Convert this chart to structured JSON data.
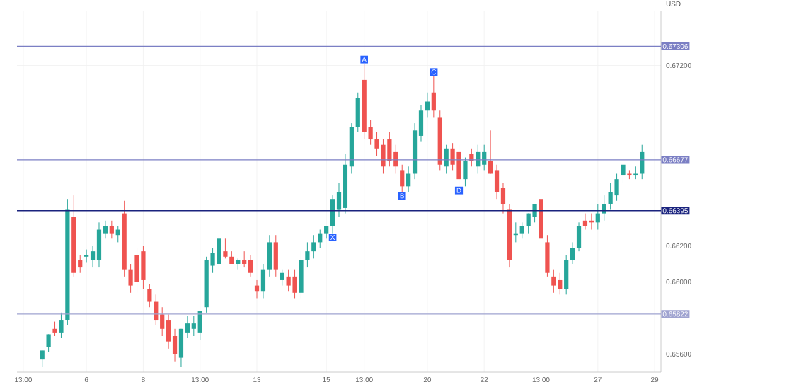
{
  "chart_data": {
    "type": "candlestick",
    "ylabel": "USD",
    "categories": [
      "13:00",
      null,
      null,
      null,
      null,
      null,
      null,
      null,
      null,
      null,
      "6",
      null,
      null,
      null,
      null,
      null,
      null,
      null,
      null,
      "8",
      null,
      null,
      null,
      null,
      null,
      null,
      null,
      null,
      "13:00",
      null,
      null,
      null,
      null,
      null,
      null,
      null,
      null,
      "13",
      null,
      null,
      null,
      null,
      null,
      null,
      null,
      null,
      null,
      null,
      "15",
      null,
      null,
      null,
      null,
      null,
      "13:00",
      null,
      null,
      null,
      null,
      null,
      null,
      null,
      null,
      null,
      "20",
      null,
      null,
      null,
      null,
      null,
      null,
      null,
      null,
      "22",
      null,
      null,
      null,
      null,
      null,
      null,
      null,
      null,
      "13:00",
      null,
      null,
      null,
      null,
      null,
      null,
      null,
      null,
      "27",
      null,
      null,
      null,
      null,
      null,
      null,
      null,
      null,
      "29"
    ],
    "ohlc": [
      null,
      null,
      null,
      [
        0.6557,
        0.6562,
        0.6553,
        0.6562
      ],
      [
        0.6564,
        0.6571,
        0.6561,
        0.6571
      ],
      [
        0.6574,
        0.6578,
        0.657,
        0.6572
      ],
      [
        0.6572,
        0.6583,
        0.6569,
        0.6579
      ],
      [
        0.6579,
        0.6646,
        0.6576,
        0.664
      ],
      [
        0.6636,
        0.6648,
        0.6603,
        0.6605
      ],
      [
        0.6612,
        0.6615,
        0.6605,
        0.6608
      ],
      [
        0.6614,
        0.6618,
        0.6611,
        0.6615
      ],
      [
        0.6612,
        0.662,
        0.6608,
        0.6617
      ],
      [
        0.6612,
        0.6633,
        0.6608,
        0.6629
      ],
      [
        0.6627,
        0.6634,
        0.6624,
        0.6631
      ],
      [
        0.6631,
        0.6634,
        0.6624,
        0.6627
      ],
      [
        0.6626,
        0.6631,
        0.6622,
        0.6629
      ],
      [
        0.6638,
        0.6645,
        0.6603,
        0.6607
      ],
      [
        0.6607,
        0.661,
        0.6594,
        0.6598
      ],
      [
        0.6615,
        0.6619,
        0.6594,
        0.66
      ],
      [
        0.6617,
        0.662,
        0.6596,
        0.6601
      ],
      [
        0.6596,
        0.6599,
        0.6586,
        0.6589
      ],
      [
        0.6589,
        0.6593,
        0.6576,
        0.6579
      ],
      [
        0.6582,
        0.6586,
        0.657,
        0.6574
      ],
      [
        0.6579,
        0.6582,
        0.6563,
        0.6567
      ],
      [
        0.657,
        0.6574,
        0.6556,
        0.656
      ],
      [
        0.6558,
        0.6574,
        0.6553,
        0.6574
      ],
      [
        0.6572,
        0.6581,
        0.6569,
        0.6577
      ],
      [
        0.6574,
        0.6581,
        0.657,
        0.6577
      ],
      [
        0.6572,
        0.6584,
        0.6568,
        0.6584
      ],
      [
        0.6586,
        0.6614,
        0.6583,
        0.6612
      ],
      [
        0.6609,
        0.6619,
        0.6605,
        0.6616
      ],
      [
        0.661,
        0.6626,
        0.6607,
        0.6624
      ],
      [
        0.6617,
        0.6624,
        0.6613,
        0.6614
      ],
      [
        0.6614,
        0.6617,
        0.661,
        0.661
      ],
      [
        0.661,
        0.6613,
        0.6607,
        0.6612
      ],
      [
        0.6612,
        0.6617,
        0.6608,
        0.661
      ],
      [
        0.6612,
        0.6615,
        0.6603,
        0.6605
      ],
      [
        0.6598,
        0.6601,
        0.6591,
        0.6595
      ],
      [
        0.6595,
        0.661,
        0.6591,
        0.6607
      ],
      [
        0.6607,
        0.6626,
        0.6603,
        0.6622
      ],
      [
        0.6622,
        0.6626,
        0.6603,
        0.6607
      ],
      [
        0.6601,
        0.6607,
        0.6598,
        0.6605
      ],
      [
        0.6603,
        0.6607,
        0.6595,
        0.6598
      ],
      [
        0.6603,
        0.6607,
        0.6591,
        0.6594
      ],
      [
        0.6594,
        0.6617,
        0.6591,
        0.6612
      ],
      [
        0.6612,
        0.6622,
        0.6608,
        0.6617
      ],
      [
        0.6617,
        0.6626,
        0.6613,
        0.6622
      ],
      [
        0.6622,
        0.6629,
        0.6619,
        0.6627
      ],
      [
        0.6627,
        0.6631,
        0.6624,
        0.6631
      ],
      [
        0.6631,
        0.6648,
        0.6627,
        0.6646
      ],
      [
        0.664,
        0.6655,
        0.6636,
        0.665
      ],
      [
        0.6641,
        0.6671,
        0.6638,
        0.6665
      ],
      [
        0.6664,
        0.6688,
        0.666,
        0.6686
      ],
      [
        0.6686,
        0.6705,
        0.6683,
        0.6702
      ],
      [
        0.6712,
        0.6721,
        0.6679,
        0.6683
      ],
      [
        0.6686,
        0.669,
        0.6676,
        0.6679
      ],
      [
        0.6679,
        0.6683,
        0.667,
        0.6674
      ],
      [
        0.6676,
        0.6679,
        0.666,
        0.6664
      ],
      [
        0.6679,
        0.6683,
        0.6664,
        0.6667
      ],
      [
        0.6672,
        0.6676,
        0.666,
        0.6664
      ],
      [
        0.6662,
        0.6665,
        0.665,
        0.6653
      ],
      [
        0.6653,
        0.6664,
        0.665,
        0.666
      ],
      [
        0.666,
        0.6688,
        0.6657,
        0.6684
      ],
      [
        0.6681,
        0.6698,
        0.6678,
        0.6695
      ],
      [
        0.6695,
        0.6705,
        0.6691,
        0.67
      ],
      [
        0.6705,
        0.6714,
        0.6691,
        0.6695
      ],
      [
        0.6691,
        0.6695,
        0.6662,
        0.6665
      ],
      [
        0.6664,
        0.6676,
        0.666,
        0.6674
      ],
      [
        0.6674,
        0.6677,
        0.6662,
        0.6665
      ],
      [
        0.6672,
        0.6676,
        0.6653,
        0.6657
      ],
      [
        0.6657,
        0.6669,
        0.6653,
        0.6667
      ],
      [
        0.6671,
        0.6674,
        0.6664,
        0.6667
      ],
      [
        0.6664,
        0.6676,
        0.666,
        0.6672
      ],
      [
        0.6665,
        0.6676,
        0.6662,
        0.6672
      ],
      [
        0.6667,
        0.6684,
        0.666,
        0.666
      ],
      [
        0.6662,
        0.6665,
        0.6646,
        0.665
      ],
      [
        0.6652,
        0.6655,
        0.6638,
        0.6643
      ],
      [
        0.664,
        0.6643,
        0.6608,
        0.6612
      ],
      [
        0.6626,
        0.6633,
        0.6622,
        0.6627
      ],
      [
        0.6627,
        0.6633,
        0.6624,
        0.6631
      ],
      [
        0.6631,
        0.6638,
        0.6627,
        0.6638
      ],
      [
        0.6636,
        0.6643,
        0.6633,
        0.6643
      ],
      [
        0.6646,
        0.6652,
        0.662,
        0.6624
      ],
      [
        0.6622,
        0.6626,
        0.6603,
        0.6605
      ],
      [
        0.6603,
        0.6607,
        0.6594,
        0.6598
      ],
      [
        0.6601,
        0.6605,
        0.6593,
        0.6596
      ],
      [
        0.6596,
        0.6615,
        0.6593,
        0.6612
      ],
      [
        0.6612,
        0.6622,
        0.661,
        0.6619
      ],
      [
        0.6619,
        0.6633,
        0.6617,
        0.6631
      ],
      [
        0.6634,
        0.6638,
        0.6629,
        0.6631
      ],
      [
        0.6634,
        0.6638,
        0.6629,
        0.6633
      ],
      [
        0.6633,
        0.6643,
        0.6629,
        0.6638
      ],
      [
        0.6638,
        0.6648,
        0.6634,
        0.6643
      ],
      [
        0.6643,
        0.6655,
        0.664,
        0.665
      ],
      [
        0.6648,
        0.666,
        0.6645,
        0.6657
      ],
      [
        0.6659,
        0.6665,
        0.6655,
        0.6665
      ],
      [
        0.666,
        0.6662,
        0.6657,
        0.6659
      ],
      [
        0.6659,
        0.6664,
        0.6657,
        0.666
      ],
      [
        0.666,
        0.6676,
        0.6657,
        0.6672
      ],
      null,
      null
    ],
    "ylim": [
      0.655,
      0.675
    ],
    "yticks": [
      {
        "value": 0.656,
        "label": "0.65600"
      },
      {
        "value": 0.66,
        "label": "0.66000"
      },
      {
        "value": 0.662,
        "label": "0.66200"
      },
      {
        "value": 0.672,
        "label": "0.67200"
      }
    ],
    "grid": true,
    "ref_lines": [
      {
        "axis": "y",
        "value": 0.67306,
        "label": "0.67306",
        "color": "#7b7fc4"
      },
      {
        "axis": "y",
        "value": 0.66677,
        "label": "0.66677",
        "color": "#7b7fc4"
      },
      {
        "axis": "y",
        "value": 0.66395,
        "label": "0.66395",
        "color": "#1a237e"
      },
      {
        "axis": "y",
        "value": 0.65822,
        "label": "0.65822",
        "color": "#9fa3d0"
      }
    ],
    "annotations": [
      {
        "text": "X",
        "y": 0.6627
      },
      {
        "text": "A",
        "y": 0.6721
      },
      {
        "text": "B",
        "y": 0.665
      },
      {
        "text": "C",
        "y": 0.6714
      },
      {
        "text": "D",
        "y": 0.6653
      }
    ]
  }
}
